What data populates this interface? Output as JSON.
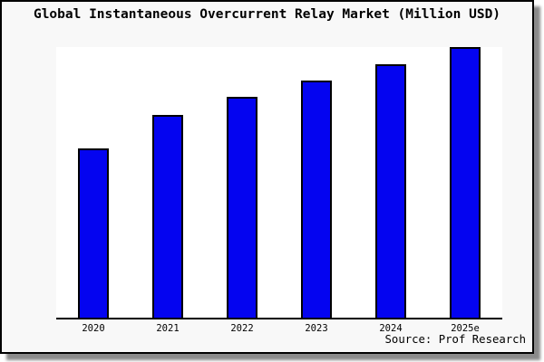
{
  "chart_data": {
    "type": "bar",
    "title": "Global Instantaneous Overcurrent Relay Market (Million USD)",
    "categories": [
      "2020",
      "2021",
      "2022",
      "2023",
      "2024",
      "2025e"
    ],
    "values": [
      62.5,
      75,
      81.5,
      87.5,
      93.5,
      100
    ],
    "value_scale": "relative bar height, % of tallest bar (chart shows no y-axis ticks)",
    "xlabel": "",
    "ylabel": "",
    "ylim": [
      0,
      100
    ],
    "grid": false,
    "legend": false,
    "bar_color": "#0404f0",
    "bar_border_color": "#000000",
    "axis_color": "#000000"
  },
  "source_note": "Source: Prof Research",
  "frame": {
    "background": "#f8f8f8",
    "plot_background": "#ffffff",
    "border_color": "#000000",
    "shadow_color": "#8a8a8a"
  }
}
